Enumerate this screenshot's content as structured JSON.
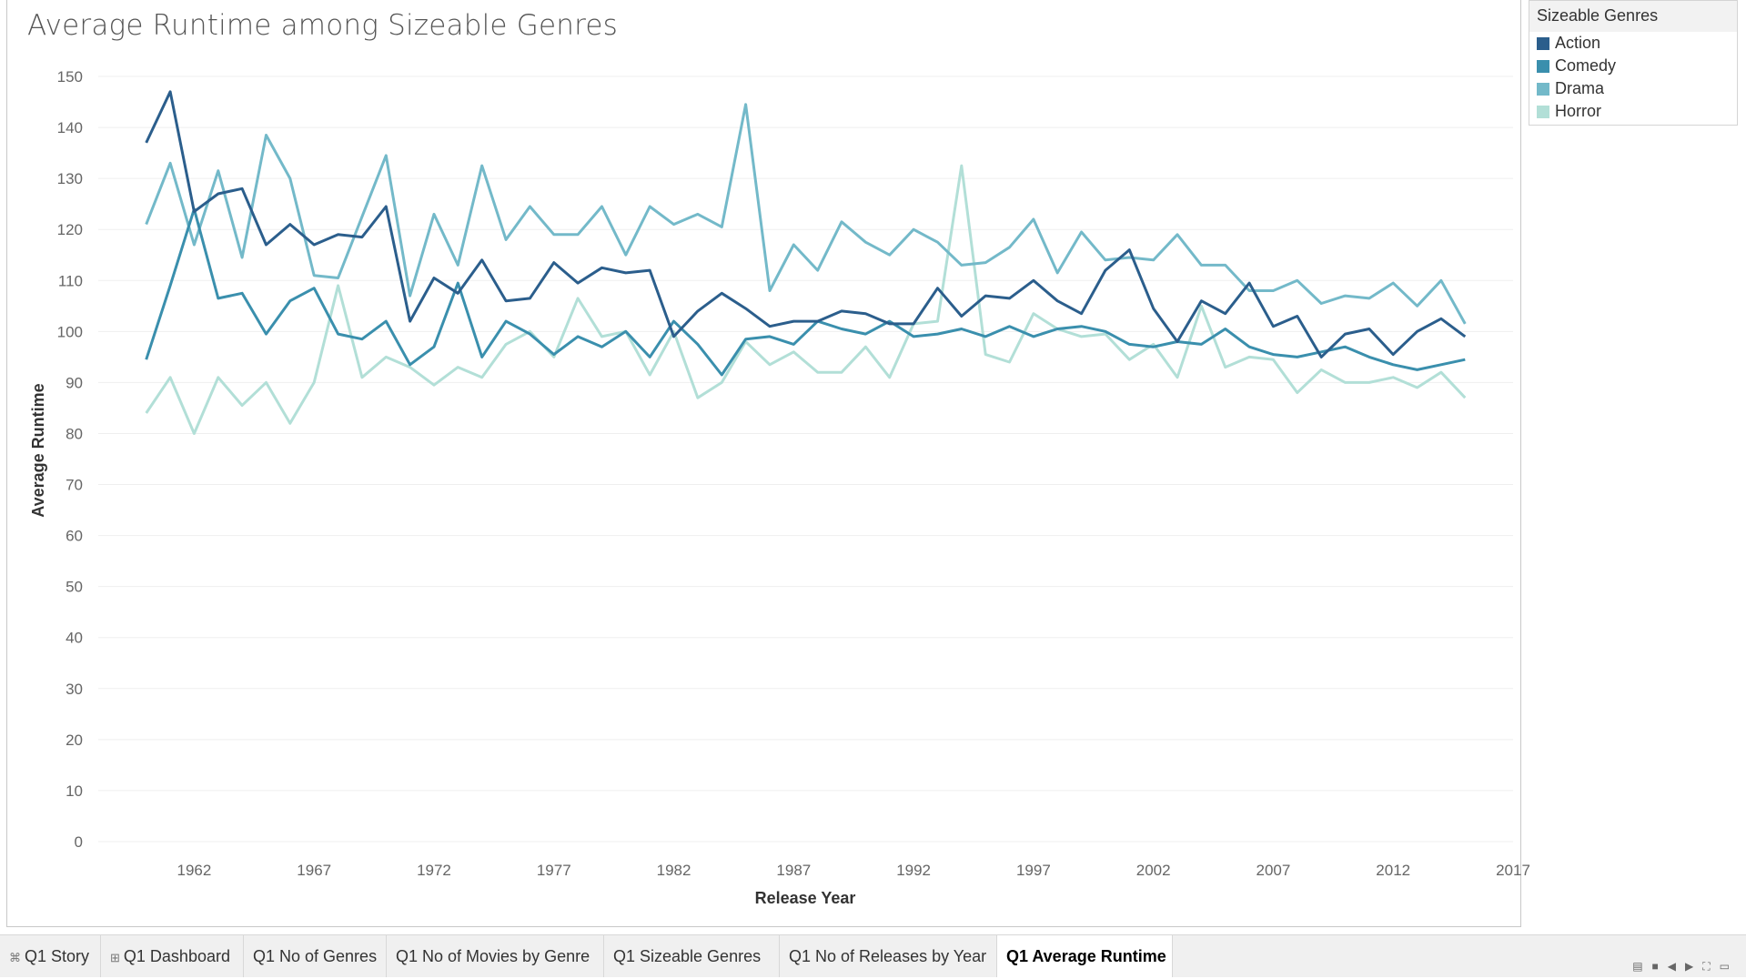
{
  "tabs": [
    {
      "label": "Q1 Story",
      "icon": "story-icon",
      "glyph": "⌘",
      "active": false
    },
    {
      "label": "Q1 Dashboard",
      "icon": "dashboard-icon",
      "glyph": "⊞",
      "active": false
    },
    {
      "label": "Q1 No of Genres",
      "active": false
    },
    {
      "label": "Q1 No of Movies by Genre",
      "active": false
    },
    {
      "label": "Q1 Sizeable Genres",
      "active": false
    },
    {
      "label": "Q1 No of Releases by Year",
      "active": false
    },
    {
      "label": "Q1 Average Runtime",
      "active": true
    }
  ],
  "nav_icons": [
    "grid-view-icon",
    "filmstrip-icon",
    "prev-sheet-icon",
    "next-sheet-icon",
    "fit-icon",
    "presentation-icon"
  ],
  "chart_data": {
    "type": "line",
    "title": "Average Runtime among Sizeable Genres",
    "xlabel": "Release Year",
    "ylabel": "Average Runtime",
    "xlim": [
      1958,
      2017
    ],
    "ylim": [
      0,
      150
    ],
    "x_ticks": [
      1962,
      1967,
      1972,
      1977,
      1982,
      1987,
      1992,
      1997,
      2002,
      2007,
      2012,
      2017
    ],
    "y_ticks": [
      0,
      10,
      20,
      30,
      40,
      50,
      60,
      70,
      80,
      90,
      100,
      110,
      120,
      130,
      140,
      150
    ],
    "grid": true,
    "legend_title": "Sizeable Genres",
    "legend_position": "top-right",
    "x": [
      1960,
      1961,
      1962,
      1963,
      1964,
      1965,
      1966,
      1967,
      1968,
      1969,
      1970,
      1971,
      1972,
      1973,
      1974,
      1975,
      1976,
      1977,
      1978,
      1979,
      1980,
      1981,
      1982,
      1983,
      1984,
      1985,
      1986,
      1987,
      1988,
      1989,
      1990,
      1991,
      1992,
      1993,
      1994,
      1995,
      1996,
      1997,
      1998,
      1999,
      2000,
      2001,
      2002,
      2003,
      2004,
      2005,
      2006,
      2007,
      2008,
      2009,
      2010,
      2011,
      2012,
      2013,
      2014,
      2015
    ],
    "series": [
      {
        "name": "Action",
        "color": "#2b5e8c",
        "values": [
          137,
          147,
          123.5,
          127,
          128,
          117,
          121,
          117,
          119,
          118.5,
          124.5,
          102,
          110.5,
          107.5,
          114,
          106,
          106.5,
          113.5,
          109.5,
          112.5,
          111.5,
          112,
          99,
          104,
          107.5,
          104.5,
          101,
          102,
          102,
          104,
          103.5,
          101.5,
          101.5,
          108.5,
          103,
          107,
          106.5,
          110,
          106,
          103.5,
          112,
          116,
          104.5,
          98,
          106,
          103.5,
          109.5,
          101,
          103,
          95,
          99.5,
          100.5,
          95.5,
          100,
          102.5,
          99
        ]
      },
      {
        "name": "Comedy",
        "color": "#3a8fad",
        "values": [
          94.5,
          109,
          124,
          106.5,
          107.5,
          99.5,
          106,
          108.5,
          99.5,
          98.5,
          102,
          93.5,
          97,
          109.5,
          95,
          102,
          99.5,
          95.5,
          99,
          97,
          100,
          95,
          102,
          97.5,
          91.5,
          98.5,
          99,
          97.5,
          102,
          100.5,
          99.5,
          102,
          99,
          99.5,
          100.5,
          99,
          101,
          99,
          100.5,
          101,
          100,
          97.5,
          97,
          98,
          97.5,
          100.5,
          97,
          95.5,
          95,
          96,
          97,
          95,
          93.5,
          92.5,
          93.5,
          94.5
        ]
      },
      {
        "name": "Drama",
        "color": "#73b9c9",
        "values": [
          121,
          133,
          117,
          131.5,
          114.5,
          138.5,
          130,
          111,
          110.5,
          122.5,
          134.5,
          107,
          123,
          113,
          132.5,
          118,
          124.5,
          119,
          119,
          124.5,
          115,
          124.5,
          121,
          123,
          120.5,
          144.5,
          108,
          117,
          112,
          121.5,
          117.5,
          115,
          120,
          117.5,
          113,
          113.5,
          116.5,
          122,
          111.5,
          119.5,
          114,
          114.5,
          114,
          119,
          113,
          113,
          108,
          108,
          110,
          105.5,
          107,
          106.5,
          109.5,
          105,
          110,
          101.5
        ]
      },
      {
        "name": "Horror",
        "color": "#b2dfd7",
        "values": [
          84,
          91,
          80,
          91,
          85.5,
          90,
          82,
          90,
          109,
          91,
          95,
          93,
          89.5,
          93,
          91,
          97.5,
          100,
          95,
          106.5,
          99,
          100,
          91.5,
          100,
          87,
          90,
          98,
          93.5,
          96,
          92,
          92,
          97,
          91,
          101.5,
          102,
          132.5,
          95.5,
          94,
          103.5,
          100.5,
          99,
          99.5,
          94.5,
          97.5,
          91,
          105,
          93,
          95,
          94.5,
          88,
          92.5,
          90,
          90,
          91,
          89,
          92,
          87
        ]
      }
    ]
  }
}
